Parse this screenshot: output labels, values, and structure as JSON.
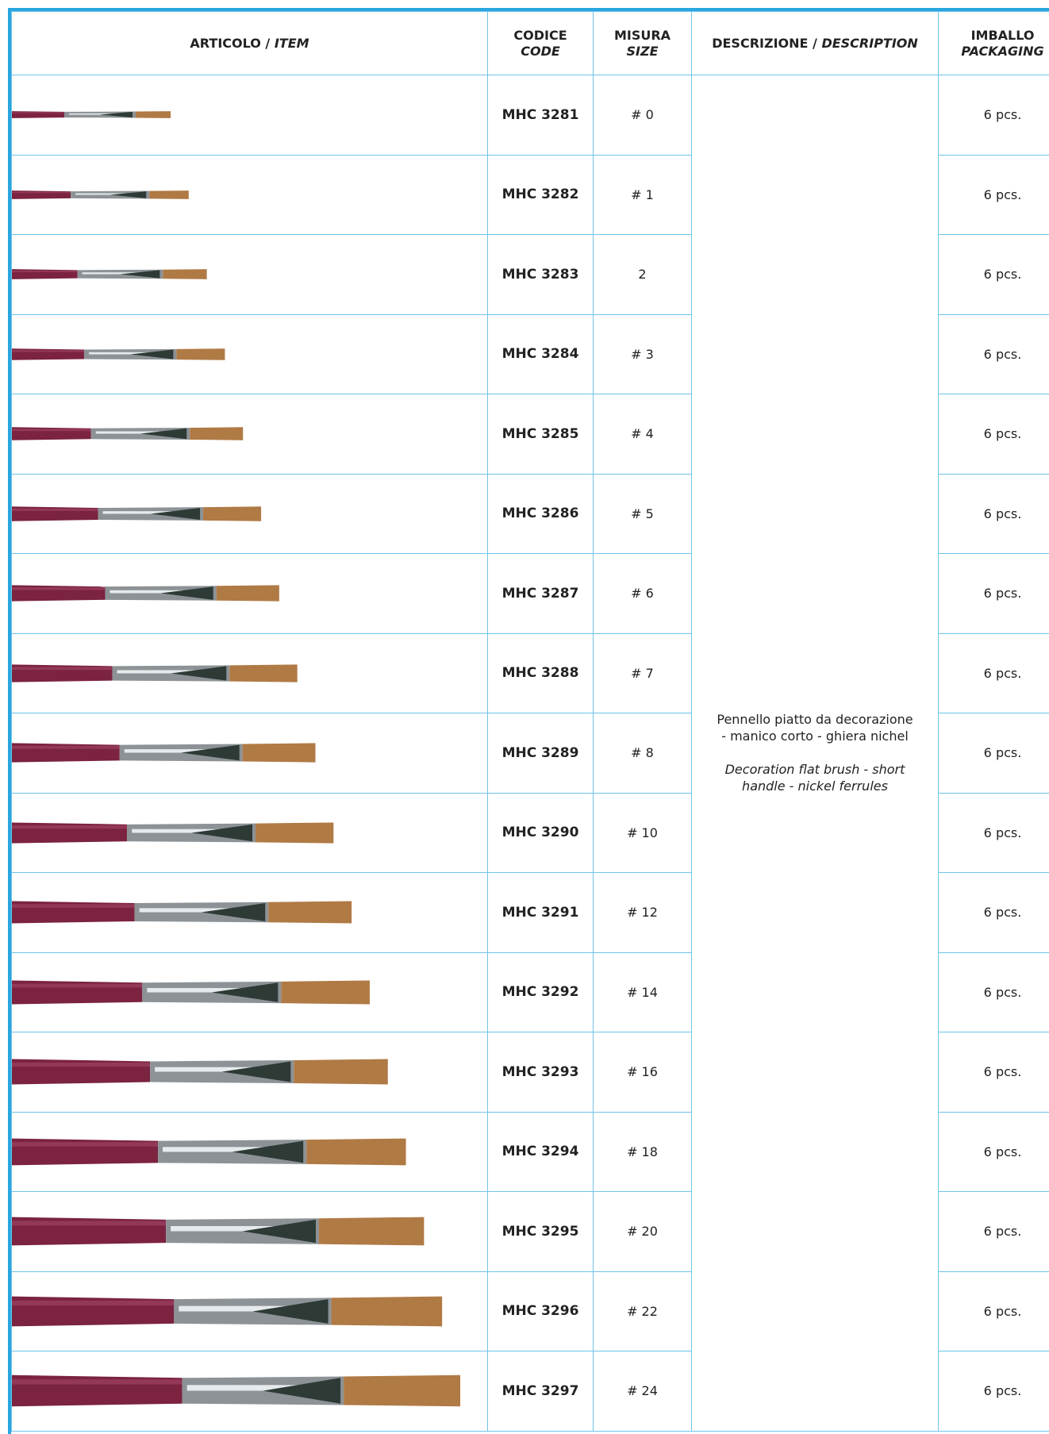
{
  "header": {
    "item": {
      "it": "ARTICOLO /",
      "en": "ITEM"
    },
    "code": {
      "it": "CODICE",
      "en": "CODE"
    },
    "size": {
      "it": "MISURA",
      "en": "SIZE"
    },
    "description": {
      "it": "DESCRIZIONE /",
      "en": "DESCRIPTION"
    },
    "packaging": {
      "it": "IMBALLO",
      "en": "PACKAGING"
    }
  },
  "description": {
    "it": "Pennello piatto da decorazione - manico corto - ghiera nichel",
    "en": "Decoration flat brush - short handle - nickel ferrules"
  },
  "rows": [
    [
      "MHC 3281",
      "# 0",
      "6 pcs."
    ],
    [
      "MHC 3282",
      "# 1",
      "6 pcs."
    ],
    [
      "MHC 3283",
      "2",
      "6 pcs."
    ],
    [
      "MHC 3284",
      "# 3",
      "6 pcs."
    ],
    [
      "MHC 3285",
      "# 4",
      "6 pcs."
    ],
    [
      "MHC 3286",
      "# 5",
      "6 pcs."
    ],
    [
      "MHC 3287",
      "# 6",
      "6 pcs."
    ],
    [
      "MHC 3288",
      "# 7",
      "6 pcs."
    ],
    [
      "MHC 3289",
      "# 8",
      "6 pcs."
    ],
    [
      "MHC 3290",
      "# 10",
      "6 pcs."
    ],
    [
      "MHC 3291",
      "# 12",
      "6 pcs."
    ],
    [
      "MHC 3292",
      "# 14",
      "6 pcs."
    ],
    [
      "MHC 3293",
      "# 16",
      "6 pcs."
    ],
    [
      "MHC 3294",
      "# 18",
      "6 pcs."
    ],
    [
      "MHC 3295",
      "# 20",
      "6 pcs."
    ],
    [
      "MHC 3296",
      "# 22",
      "6 pcs."
    ],
    [
      "MHC 3297",
      "# 24",
      "6 pcs."
    ]
  ]
}
